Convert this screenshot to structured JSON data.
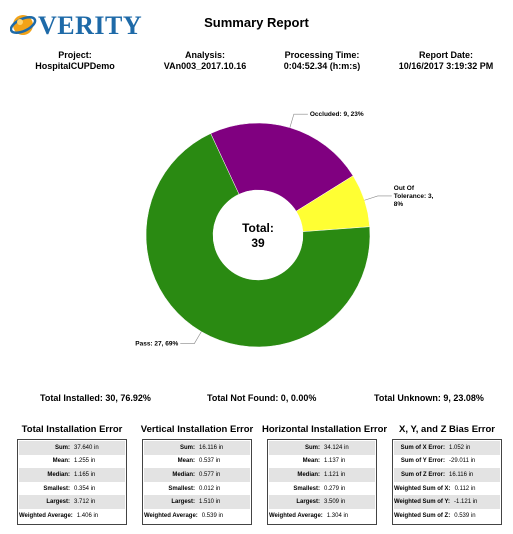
{
  "header": {
    "logo_text": "VERITY",
    "title": "Summary Report"
  },
  "meta": [
    {
      "label": "Project:",
      "value": "HospitalCUPDemo"
    },
    {
      "label": "Analysis:",
      "value": "VAn003_2017.10.16"
    },
    {
      "label": "Processing Time:",
      "value": "0:04:52.34 (h:m:s)"
    },
    {
      "label": "Report Date:",
      "value": "10/16/2017 3:19:32 PM"
    }
  ],
  "colors": {
    "pass": "#2a8a12",
    "occluded": "#800080",
    "out_of_tolerance": "#ffff33",
    "logo": "#1e6aa8"
  },
  "chart_data": {
    "type": "pie",
    "center_label": "Total:",
    "center_value": "39",
    "slices": [
      {
        "label": "Occluded: 9,  23%",
        "value": 9,
        "color": "#800080"
      },
      {
        "label": "Out Of\nTolerance: 3,\n8%",
        "value": 3,
        "color": "#ffff33"
      },
      {
        "label": "Pass: 27,  69%",
        "value": 27,
        "color": "#2a8a12"
      }
    ]
  },
  "totals": {
    "installed": "Total Installed: 30, 76.92%",
    "not_found": "Total Not Found: 0, 0.00%",
    "unknown": "Total Unknown: 9, 23.08%"
  },
  "stats": [
    {
      "title": "Total Installation Error",
      "rows": [
        {
          "label": "Sum:",
          "value": "37.640 in"
        },
        {
          "label": "Mean:",
          "value": "1.255 in"
        },
        {
          "label": "Median:",
          "value": "1.165 in"
        },
        {
          "label": "Smallest:",
          "value": "0.354 in"
        },
        {
          "label": "Largest:",
          "value": "3.712 in"
        },
        {
          "label": "Weighted Average:",
          "value": "1.406 in"
        }
      ]
    },
    {
      "title": "Vertical Installation Error",
      "rows": [
        {
          "label": "Sum:",
          "value": "16.116 in"
        },
        {
          "label": "Mean:",
          "value": "0.537 in"
        },
        {
          "label": "Median:",
          "value": "0.577 in"
        },
        {
          "label": "Smallest:",
          "value": "0.012 in"
        },
        {
          "label": "Largest:",
          "value": "1.510 in"
        },
        {
          "label": "Weighted Average:",
          "value": "0.539 in"
        }
      ]
    },
    {
      "title": "Horizontal Installation Error",
      "rows": [
        {
          "label": "Sum:",
          "value": "34.124 in"
        },
        {
          "label": "Mean:",
          "value": "1.137 in"
        },
        {
          "label": "Median:",
          "value": "1.121 in"
        },
        {
          "label": "Smallest:",
          "value": "0.279 in"
        },
        {
          "label": "Largest:",
          "value": "3.509 in"
        },
        {
          "label": "Weighted Average:",
          "value": "1.304 in"
        }
      ]
    },
    {
      "title": "X, Y, and Z Bias Error",
      "rows": [
        {
          "label": "Sum of X Error:",
          "value": "1.052 in"
        },
        {
          "label": "Sum of Y Error:",
          "value": "-29.011 in"
        },
        {
          "label": "Sum of Z Error:",
          "value": "16.116 in"
        },
        {
          "label": "Weighted Sum of X:",
          "value": "0.112 in"
        },
        {
          "label": "Weighted Sum of Y:",
          "value": "-1.121 in"
        },
        {
          "label": "Weighted Sum of Z:",
          "value": "0.539 in"
        }
      ]
    }
  ]
}
